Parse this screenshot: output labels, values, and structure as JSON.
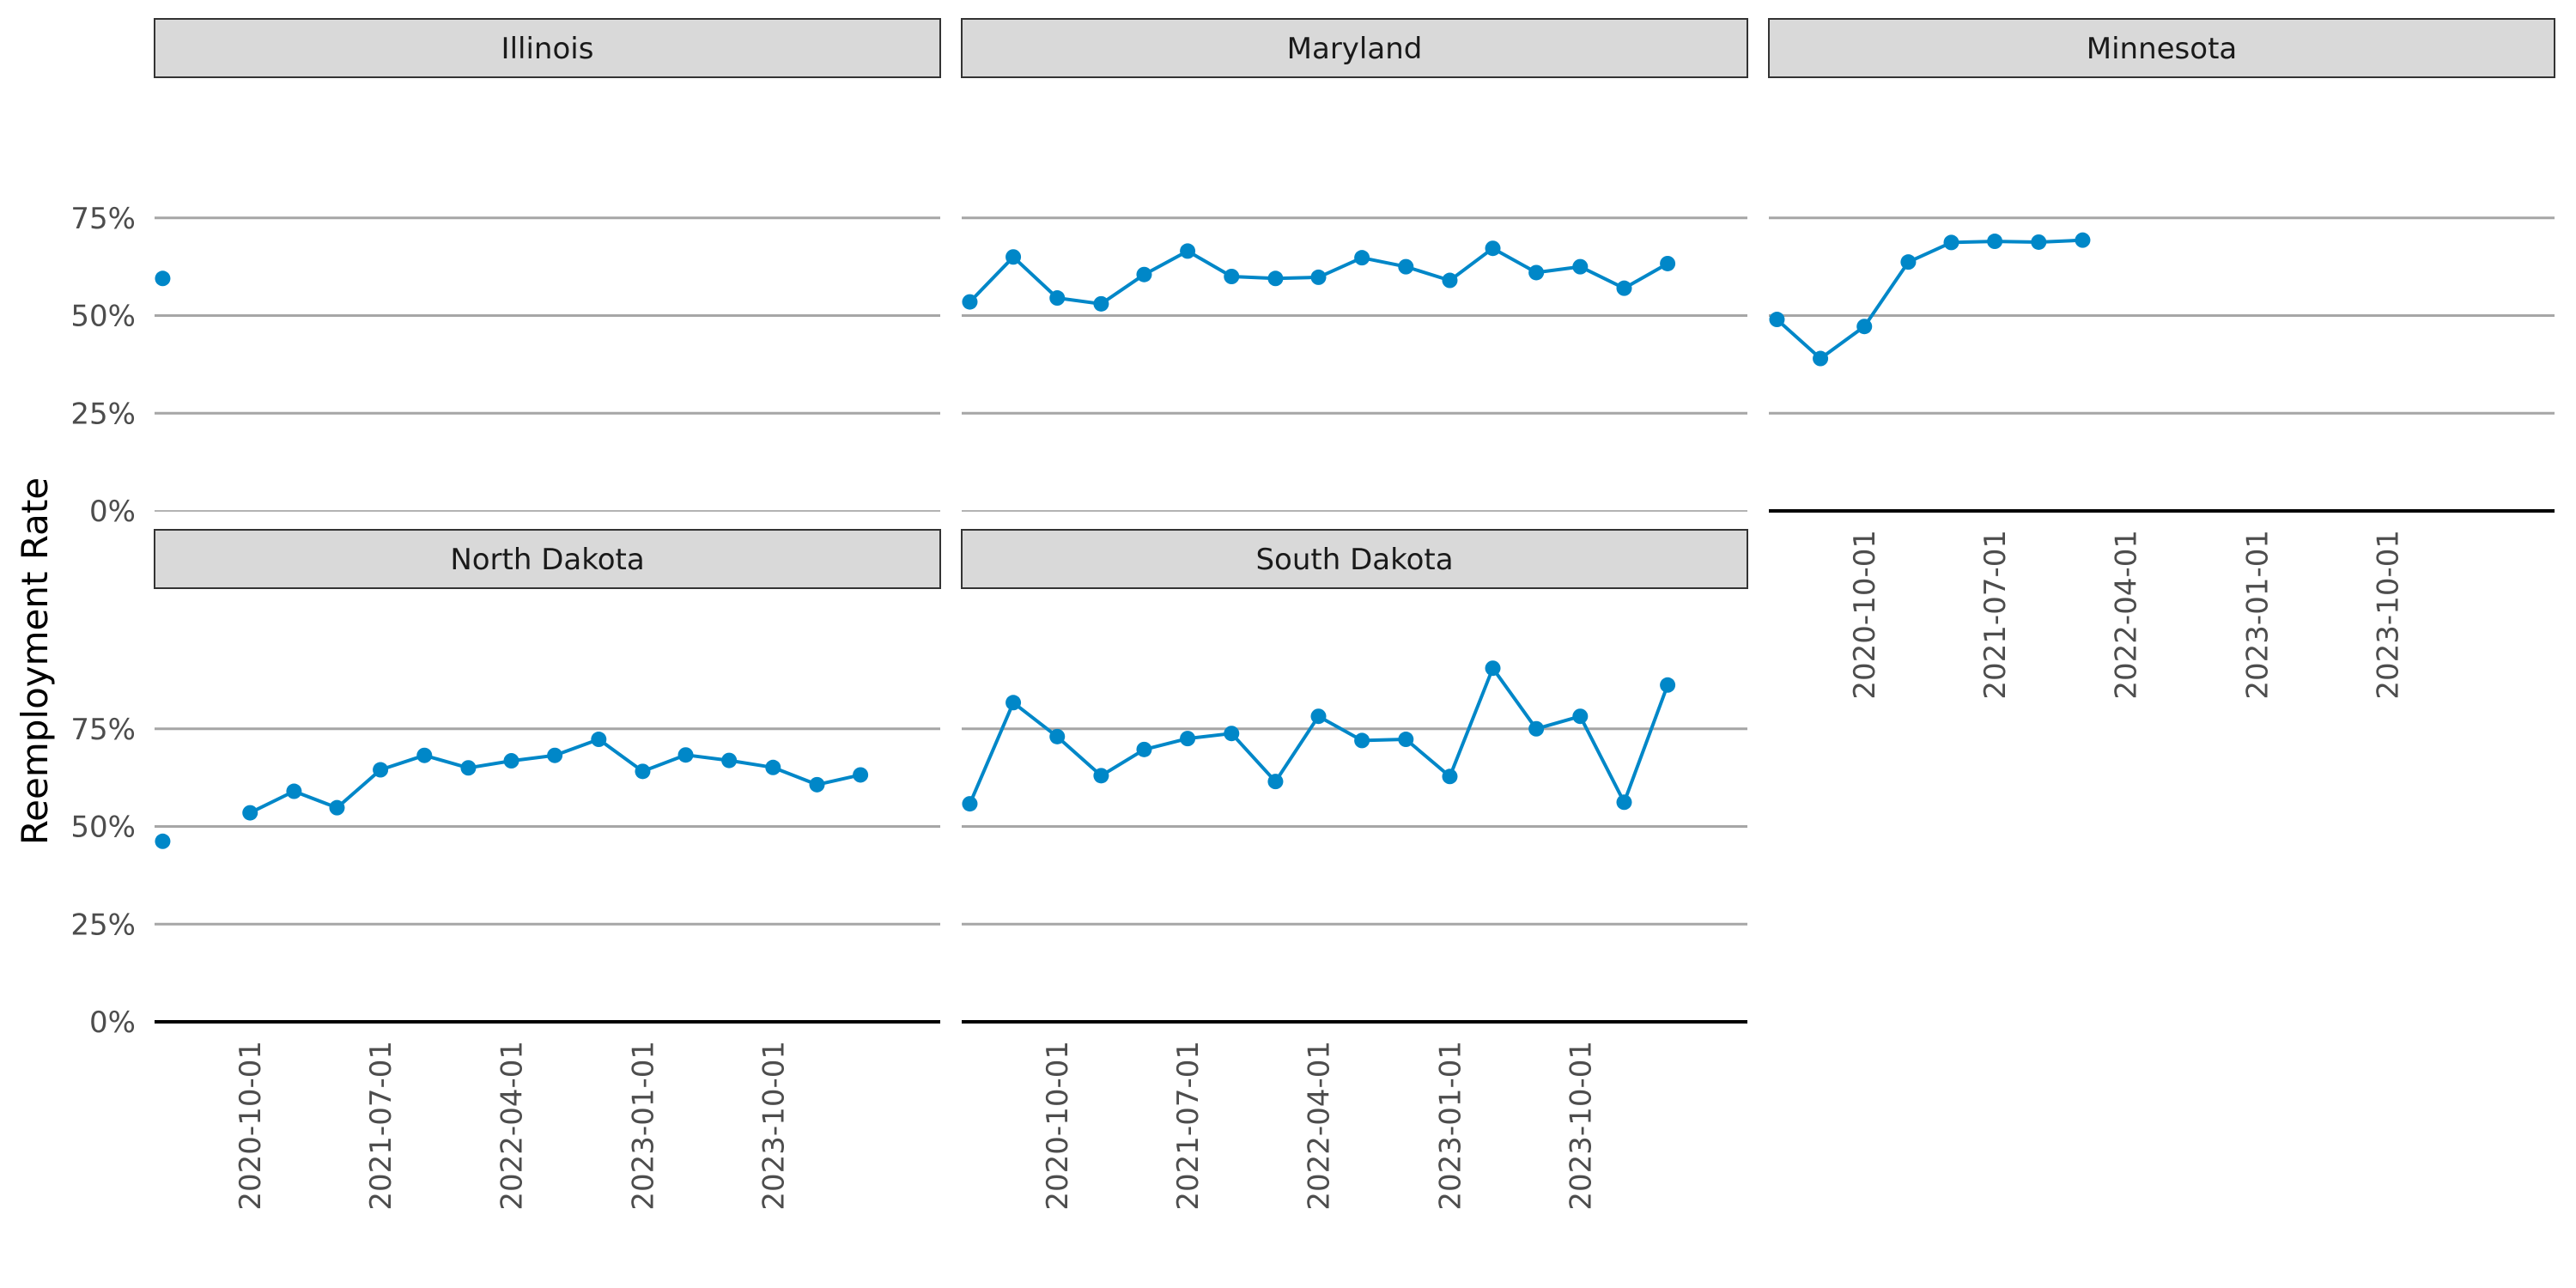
{
  "chart_data": {
    "type": "line",
    "facet_by": "state",
    "layout": {
      "columns": 3,
      "rows": 2
    },
    "title": "",
    "xlabel": "",
    "ylabel": "Reemployment Rate",
    "ylim": [
      0,
      1
    ],
    "y_ticks": [
      0,
      0.25,
      0.5,
      0.75
    ],
    "y_tick_labels": [
      "0%",
      "25%",
      "50%",
      "75%"
    ],
    "x_range": [
      "2020-03-15",
      "2024-09-15"
    ],
    "x_ticks": [
      "2020-10-01",
      "2021-07-01",
      "2022-04-01",
      "2023-01-01",
      "2023-10-01"
    ],
    "grid": "horizontal major lines only",
    "series_color": "#0087C8",
    "strip_fill": "#D9D9D9",
    "panels": [
      {
        "name": "Illinois",
        "points": [
          {
            "x": "2020-04-01",
            "y": 0.595
          }
        ]
      },
      {
        "name": "Maryland",
        "points": [
          {
            "x": "2020-04-01",
            "y": 0.535
          },
          {
            "x": "2020-07-01",
            "y": 0.65
          },
          {
            "x": "2020-10-01",
            "y": 0.545
          },
          {
            "x": "2021-01-01",
            "y": 0.53
          },
          {
            "x": "2021-04-01",
            "y": 0.605
          },
          {
            "x": "2021-07-01",
            "y": 0.665
          },
          {
            "x": "2021-10-01",
            "y": 0.6
          },
          {
            "x": "2022-01-01",
            "y": 0.595
          },
          {
            "x": "2022-04-01",
            "y": 0.598
          },
          {
            "x": "2022-07-01",
            "y": 0.648
          },
          {
            "x": "2022-10-01",
            "y": 0.625
          },
          {
            "x": "2023-01-01",
            "y": 0.59
          },
          {
            "x": "2023-04-01",
            "y": 0.672
          },
          {
            "x": "2023-07-01",
            "y": 0.61
          },
          {
            "x": "2023-10-01",
            "y": 0.625
          },
          {
            "x": "2024-01-01",
            "y": 0.57
          },
          {
            "x": "2024-04-01",
            "y": 0.633
          }
        ]
      },
      {
        "name": "Minnesota",
        "points": [
          {
            "x": "2020-04-01",
            "y": 0.49
          },
          {
            "x": "2020-07-01",
            "y": 0.39
          },
          {
            "x": "2020-10-01",
            "y": 0.472
          },
          {
            "x": "2021-01-01",
            "y": 0.637
          },
          {
            "x": "2021-04-01",
            "y": 0.687
          },
          {
            "x": "2021-07-01",
            "y": 0.69
          },
          {
            "x": "2021-10-01",
            "y": 0.688
          },
          {
            "x": "2022-01-01",
            "y": 0.693
          }
        ]
      },
      {
        "name": "North Dakota",
        "points": [
          {
            "x": "2020-04-01",
            "y": 0.462
          },
          {
            "x": "2020-10-01",
            "y": 0.535
          },
          {
            "x": "2021-01-01",
            "y": 0.59
          },
          {
            "x": "2021-04-01",
            "y": 0.548
          },
          {
            "x": "2021-07-01",
            "y": 0.645
          },
          {
            "x": "2021-10-01",
            "y": 0.682
          },
          {
            "x": "2022-01-01",
            "y": 0.65
          },
          {
            "x": "2022-04-01",
            "y": 0.668
          },
          {
            "x": "2022-07-01",
            "y": 0.682
          },
          {
            "x": "2022-10-01",
            "y": 0.723
          },
          {
            "x": "2023-01-01",
            "y": 0.641
          },
          {
            "x": "2023-04-01",
            "y": 0.683
          },
          {
            "x": "2023-07-01",
            "y": 0.669
          },
          {
            "x": "2023-10-01",
            "y": 0.651
          },
          {
            "x": "2024-01-01",
            "y": 0.607
          },
          {
            "x": "2024-04-01",
            "y": 0.632
          }
        ],
        "gaps_after": [
          "2020-04-01"
        ]
      },
      {
        "name": "South Dakota",
        "points": [
          {
            "x": "2020-04-01",
            "y": 0.558
          },
          {
            "x": "2020-07-01",
            "y": 0.817
          },
          {
            "x": "2020-10-01",
            "y": 0.73
          },
          {
            "x": "2021-01-01",
            "y": 0.63
          },
          {
            "x": "2021-04-01",
            "y": 0.697
          },
          {
            "x": "2021-07-01",
            "y": 0.725
          },
          {
            "x": "2021-10-01",
            "y": 0.738
          },
          {
            "x": "2022-01-01",
            "y": 0.615
          },
          {
            "x": "2022-04-01",
            "y": 0.782
          },
          {
            "x": "2022-07-01",
            "y": 0.72
          },
          {
            "x": "2022-10-01",
            "y": 0.723
          },
          {
            "x": "2023-01-01",
            "y": 0.628
          },
          {
            "x": "2023-04-01",
            "y": 0.905
          },
          {
            "x": "2023-07-01",
            "y": 0.75
          },
          {
            "x": "2023-10-01",
            "y": 0.782
          },
          {
            "x": "2024-01-01",
            "y": 0.562
          },
          {
            "x": "2024-04-01",
            "y": 0.862
          }
        ]
      }
    ]
  }
}
